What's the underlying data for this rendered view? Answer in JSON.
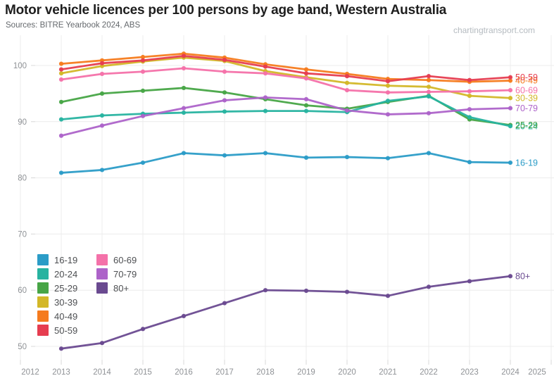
{
  "header": {
    "title": "Motor vehicle licences per 100 persons by age band, Western Australia",
    "source": "Sources: BITRE Yearbook 2024, ABS",
    "watermark": "chartingtransport.com"
  },
  "chart_data": {
    "type": "line",
    "title": "Motor vehicle licences per 100 persons by age band, Western Australia",
    "xlabel": "",
    "ylabel": "",
    "x": [
      2013,
      2014,
      2015,
      2016,
      2017,
      2018,
      2019,
      2020,
      2021,
      2022,
      2023,
      2024
    ],
    "xticks": [
      2012,
      2013,
      2014,
      2015,
      2016,
      2017,
      2018,
      2019,
      2020,
      2021,
      2022,
      2023,
      2024,
      2025
    ],
    "yticks": [
      50,
      60,
      70,
      80,
      90,
      100
    ],
    "xlim": [
      2012,
      2025
    ],
    "ylim": [
      47,
      104
    ],
    "grid": true,
    "legend_position": "inside-left-middle",
    "marker": "circle",
    "series": [
      {
        "name": "16-19",
        "color": "#2b9cc7",
        "values": [
          80.9,
          81.4,
          82.7,
          84.4,
          84.0,
          84.4,
          83.6,
          83.7,
          83.5,
          84.4,
          82.8,
          82.7
        ]
      },
      {
        "name": "20-24",
        "color": "#27b3a0",
        "values": [
          90.4,
          91.1,
          91.4,
          91.6,
          91.8,
          91.9,
          91.9,
          91.7,
          93.7,
          94.5,
          90.8,
          89.2
        ]
      },
      {
        "name": "25-29",
        "color": "#47a546",
        "values": [
          93.5,
          95.0,
          95.5,
          96.0,
          95.2,
          94.0,
          92.9,
          92.3,
          93.5,
          94.6,
          90.4,
          89.4
        ]
      },
      {
        "name": "30-39",
        "color": "#d3b728",
        "values": [
          98.6,
          99.9,
          100.7,
          101.4,
          100.8,
          99.0,
          97.9,
          96.9,
          96.4,
          96.2,
          94.6,
          94.2
        ]
      },
      {
        "name": "40-49",
        "color": "#f57b1e",
        "values": [
          100.3,
          100.9,
          101.5,
          102.1,
          101.4,
          100.2,
          99.3,
          98.5,
          97.6,
          97.4,
          97.1,
          97.3
        ]
      },
      {
        "name": "50-59",
        "color": "#e63d50",
        "values": [
          99.3,
          100.4,
          100.9,
          101.7,
          101.0,
          99.8,
          98.6,
          98.1,
          97.2,
          98.1,
          97.4,
          97.9
        ]
      },
      {
        "name": "60-69",
        "color": "#f471a9",
        "values": [
          97.5,
          98.5,
          98.9,
          99.5,
          98.9,
          98.6,
          97.7,
          95.6,
          95.2,
          95.3,
          95.4,
          95.6
        ]
      },
      {
        "name": "70-79",
        "color": "#ad63c9",
        "values": [
          87.5,
          89.3,
          91.0,
          92.4,
          93.8,
          94.3,
          94.0,
          92.0,
          91.3,
          91.5,
          92.2,
          92.4
        ]
      },
      {
        "name": "80+",
        "color": "#6a4a90",
        "values": [
          49.6,
          50.6,
          53.1,
          55.4,
          57.7,
          60.0,
          59.9,
          59.7,
          59.0,
          60.6,
          61.6,
          62.5
        ]
      }
    ]
  }
}
